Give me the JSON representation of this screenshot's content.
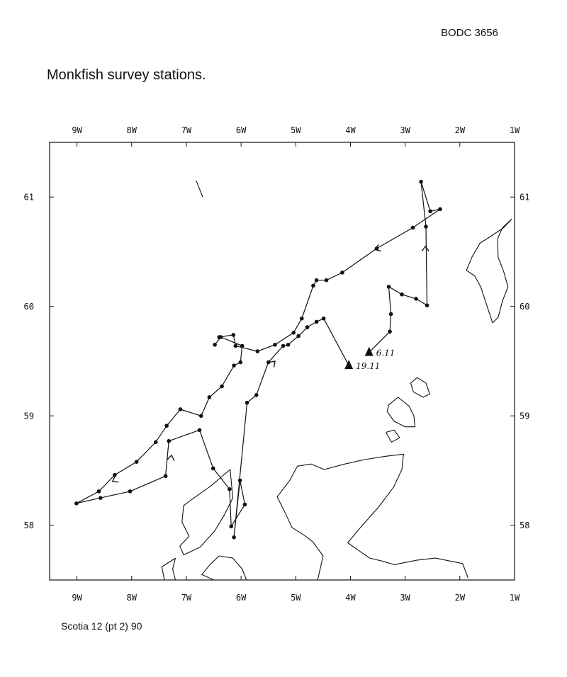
{
  "header": {
    "reference": "BODC 3656"
  },
  "title": "Monkfish survey stations.",
  "footer": {
    "cruise": "Scotia 12 (pt 2) 90"
  },
  "map": {
    "lon_range": [
      -9.5,
      -1.0
    ],
    "lat_range": [
      57.5,
      61.5
    ],
    "lon_ticks": [
      {
        "value": -9,
        "label": "9W"
      },
      {
        "value": -8,
        "label": "8W"
      },
      {
        "value": -7,
        "label": "7W"
      },
      {
        "value": -6,
        "label": "6W"
      },
      {
        "value": -5,
        "label": "5W"
      },
      {
        "value": -4,
        "label": "4W"
      },
      {
        "value": -3,
        "label": "3W"
      },
      {
        "value": -2,
        "label": "2W"
      },
      {
        "value": -1,
        "label": "1W"
      }
    ],
    "lat_ticks": [
      {
        "value": 61,
        "label": "61"
      },
      {
        "value": 60,
        "label": "60"
      },
      {
        "value": 59,
        "label": "59"
      },
      {
        "value": 58,
        "label": "58"
      }
    ],
    "start_markers": [
      {
        "lon": -3.66,
        "lat": 59.58,
        "label": "6.11"
      },
      {
        "lon": -4.03,
        "lat": 59.46,
        "label": "19.11"
      }
    ],
    "cruise_tracks": [
      {
        "name": "leg-1",
        "points": [
          [
            -3.66,
            59.58
          ],
          [
            -3.28,
            59.77
          ],
          [
            -3.26,
            59.93
          ],
          [
            -3.3,
            60.18
          ],
          [
            -3.06,
            60.11
          ],
          [
            -2.8,
            60.07
          ],
          [
            -2.6,
            60.01
          ],
          [
            -2.62,
            60.73
          ],
          [
            -2.71,
            61.14
          ],
          [
            -2.54,
            60.87
          ],
          [
            -2.36,
            60.89
          ],
          [
            -2.86,
            60.72
          ],
          [
            -3.52,
            60.53
          ],
          [
            -4.15,
            60.31
          ],
          [
            -4.44,
            60.24
          ],
          [
            -4.62,
            60.24
          ],
          [
            -4.68,
            60.19
          ],
          [
            -4.89,
            59.89
          ],
          [
            -5.04,
            59.76
          ],
          [
            -5.38,
            59.65
          ],
          [
            -5.7,
            59.59
          ],
          [
            -6.1,
            59.64
          ],
          [
            -6.14,
            59.74
          ],
          [
            -6.4,
            59.72
          ]
        ]
      },
      {
        "name": "leg-2",
        "points": [
          [
            -4.03,
            59.46
          ],
          [
            -4.49,
            59.89
          ],
          [
            -4.62,
            59.86
          ],
          [
            -4.79,
            59.81
          ],
          [
            -4.95,
            59.73
          ],
          [
            -5.14,
            59.65
          ],
          [
            -5.23,
            59.64
          ],
          [
            -5.5,
            59.49
          ],
          [
            -5.72,
            59.19
          ],
          [
            -5.89,
            59.12
          ],
          [
            -6.13,
            57.89
          ],
          [
            -6.02,
            58.41
          ],
          [
            -5.93,
            58.19
          ],
          [
            -6.18,
            57.99
          ],
          [
            -6.21,
            58.33
          ],
          [
            -6.51,
            58.52
          ],
          [
            -6.76,
            58.87
          ],
          [
            -7.32,
            58.77
          ],
          [
            -7.38,
            58.45
          ],
          [
            -8.03,
            58.31
          ],
          [
            -8.57,
            58.25
          ],
          [
            -9.01,
            58.2
          ],
          [
            -8.6,
            58.31
          ],
          [
            -8.31,
            58.46
          ],
          [
            -7.91,
            58.58
          ],
          [
            -7.56,
            58.76
          ],
          [
            -7.36,
            58.91
          ],
          [
            -7.11,
            59.06
          ],
          [
            -6.73,
            59.0
          ],
          [
            -6.58,
            59.17
          ],
          [
            -6.35,
            59.27
          ],
          [
            -6.13,
            59.46
          ],
          [
            -6.01,
            59.49
          ],
          [
            -5.98,
            59.64
          ],
          [
            -6.37,
            59.72
          ],
          [
            -6.48,
            59.65
          ]
        ]
      }
    ],
    "direction_arrows": [
      {
        "lon": -3.55,
        "lat": 60.52,
        "angle": 200
      },
      {
        "lon": -8.35,
        "lat": 58.4,
        "angle": 210
      },
      {
        "lon": -7.27,
        "lat": 58.64,
        "angle": 80
      },
      {
        "lon": -5.38,
        "lat": 59.5,
        "angle": 45
      },
      {
        "lon": -2.63,
        "lat": 60.55,
        "angle": 90
      }
    ],
    "coastlines": [
      {
        "name": "scotland-mainland",
        "points": [
          [
            -4.6,
            57.5
          ],
          [
            -4.5,
            57.72
          ],
          [
            -4.69,
            57.85
          ],
          [
            -4.82,
            57.9
          ],
          [
            -5.07,
            57.98
          ],
          [
            -5.2,
            58.12
          ],
          [
            -5.34,
            58.26
          ],
          [
            -5.11,
            58.41
          ],
          [
            -4.97,
            58.54
          ],
          [
            -4.72,
            58.56
          ],
          [
            -4.48,
            58.51
          ],
          [
            -4.1,
            58.56
          ],
          [
            -3.74,
            58.6
          ],
          [
            -3.37,
            58.63
          ],
          [
            -3.03,
            58.65
          ],
          [
            -3.06,
            58.51
          ],
          [
            -3.21,
            58.35
          ],
          [
            -3.48,
            58.17
          ],
          [
            -3.85,
            57.96
          ],
          [
            -4.05,
            57.84
          ],
          [
            -3.85,
            57.77
          ],
          [
            -3.65,
            57.7
          ],
          [
            -3.4,
            57.67
          ],
          [
            -3.2,
            57.64
          ],
          [
            -2.8,
            57.68
          ],
          [
            -2.45,
            57.7
          ],
          [
            -2.15,
            57.67
          ],
          [
            -1.95,
            57.65
          ],
          [
            -1.85,
            57.52
          ]
        ]
      },
      {
        "name": "orkney-mainland",
        "points": [
          [
            -3.3,
            59.1
          ],
          [
            -3.13,
            59.17
          ],
          [
            -2.93,
            59.09
          ],
          [
            -2.84,
            59.0
          ],
          [
            -2.82,
            58.9
          ],
          [
            -3.0,
            58.9
          ],
          [
            -3.2,
            58.95
          ],
          [
            -3.33,
            59.04
          ],
          [
            -3.3,
            59.1
          ]
        ]
      },
      {
        "name": "orkney-north",
        "points": [
          [
            -2.9,
            59.3
          ],
          [
            -2.78,
            59.35
          ],
          [
            -2.62,
            59.3
          ],
          [
            -2.55,
            59.2
          ],
          [
            -2.67,
            59.17
          ],
          [
            -2.85,
            59.22
          ],
          [
            -2.9,
            59.3
          ]
        ]
      },
      {
        "name": "orkney-hoy",
        "points": [
          [
            -3.35,
            58.85
          ],
          [
            -3.2,
            58.87
          ],
          [
            -3.1,
            58.8
          ],
          [
            -3.25,
            58.76
          ],
          [
            -3.35,
            58.85
          ]
        ]
      },
      {
        "name": "shetland",
        "points": [
          [
            -1.05,
            60.8
          ],
          [
            -1.22,
            60.72
          ],
          [
            -1.31,
            60.62
          ],
          [
            -1.3,
            60.45
          ],
          [
            -1.2,
            60.32
          ],
          [
            -1.12,
            60.18
          ],
          [
            -1.22,
            60.05
          ],
          [
            -1.3,
            59.9
          ],
          [
            -1.4,
            59.85
          ],
          [
            -1.5,
            60.0
          ],
          [
            -1.62,
            60.18
          ],
          [
            -1.73,
            60.28
          ],
          [
            -1.88,
            60.33
          ],
          [
            -1.78,
            60.45
          ],
          [
            -1.63,
            60.58
          ],
          [
            -1.5,
            60.62
          ],
          [
            -1.2,
            60.72
          ],
          [
            -1.05,
            60.8
          ]
        ]
      },
      {
        "name": "lewis-harris",
        "points": [
          [
            -6.2,
            58.51
          ],
          [
            -6.55,
            58.36
          ],
          [
            -6.86,
            58.25
          ],
          [
            -7.05,
            58.18
          ],
          [
            -7.08,
            58.03
          ],
          [
            -6.95,
            57.9
          ],
          [
            -7.12,
            57.81
          ],
          [
            -7.05,
            57.73
          ],
          [
            -6.75,
            57.8
          ],
          [
            -6.48,
            57.95
          ],
          [
            -6.3,
            58.1
          ],
          [
            -6.15,
            58.25
          ],
          [
            -6.2,
            58.51
          ]
        ]
      },
      {
        "name": "uist",
        "points": [
          [
            -7.2,
            57.7
          ],
          [
            -7.45,
            57.62
          ],
          [
            -7.4,
            57.5
          ],
          [
            -7.2,
            57.5
          ],
          [
            -7.25,
            57.6
          ],
          [
            -7.2,
            57.7
          ]
        ]
      },
      {
        "name": "skye",
        "points": [
          [
            -6.4,
            57.72
          ],
          [
            -6.15,
            57.7
          ],
          [
            -5.98,
            57.6
          ],
          [
            -5.9,
            57.5
          ],
          [
            -6.5,
            57.5
          ],
          [
            -6.72,
            57.55
          ],
          [
            -6.55,
            57.65
          ],
          [
            -6.4,
            57.72
          ]
        ]
      },
      {
        "name": "north-rona",
        "points": [
          [
            -6.7,
            61.0
          ],
          [
            -6.82,
            61.15
          ]
        ]
      }
    ]
  }
}
